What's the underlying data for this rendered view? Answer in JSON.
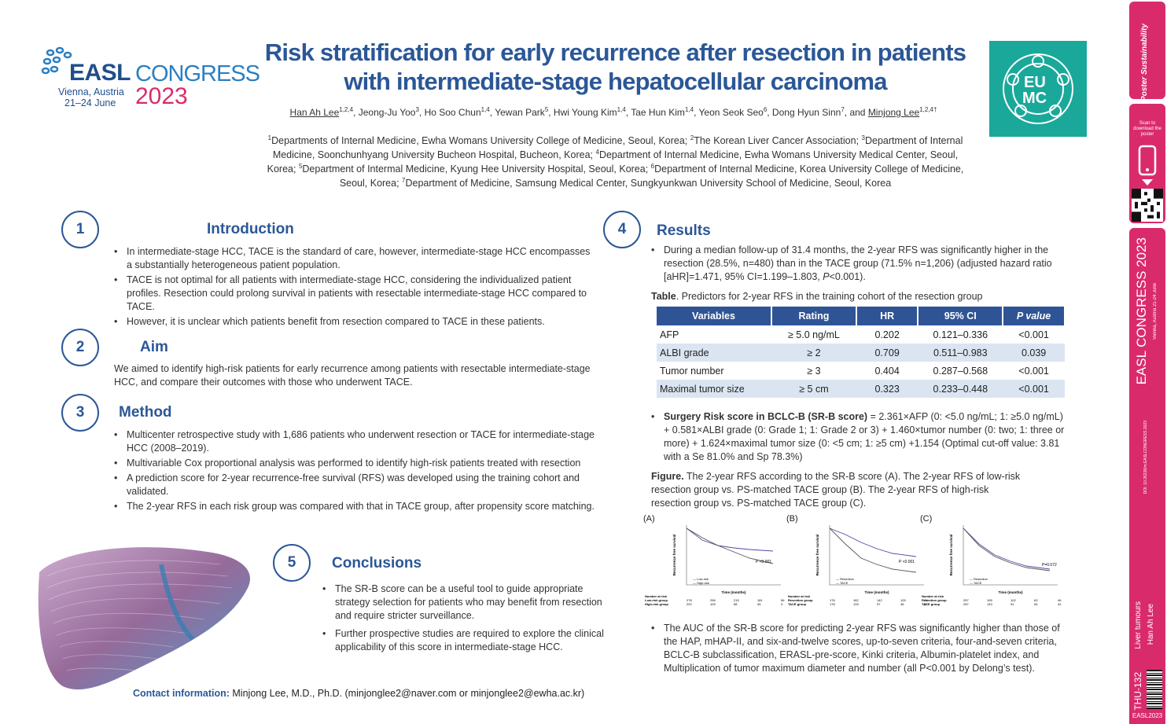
{
  "logo": {
    "easl": "EASL",
    "congress": "CONGRESS",
    "city": "Vienna, Austria",
    "dates": "21–24 June",
    "year": "2023"
  },
  "eumc_logo": {
    "line1": "EU",
    "line2": "MC"
  },
  "title_line1": "Risk stratification for early recurrence after resection in patients",
  "title_line2": "with intermediate-stage hepatocellular carcinoma",
  "authors_html": "<span class=\"u\">Han Ah Lee</span><sup>1,2,4</sup>, Jeong-Ju Yoo<sup>3</sup>, Ho Soo Chun<sup>1,4</sup>, Yewan Park<sup>5</sup>, Hwi Young Kim<sup>1,4</sup>, Tae Hun Kim<sup>1,4</sup>, Yeon Seok Seo<sup>6</sup>, Dong Hyun Sinn<sup>7</sup>, and <span class=\"u\">Minjong Lee</span><sup>1,2,4†</sup>",
  "affiliations_html": "<sup>1</sup>Departments of Internal Medicine, Ewha Womans University College of Medicine, Seoul, Korea; <sup>2</sup>The Korean Liver Cancer Association; <sup>3</sup>Department of Internal Medicine, Soonchunhyang University Bucheon Hospital, Bucheon, Korea; <sup>4</sup>Department of Internal Medicine, Ewha Womans University Medical Center, Seoul, Korea; <sup>5</sup>Department of Intermal Medicine, Kyung Hee University Hospital, Seoul, Korea; <sup>6</sup>Department of Internal Medicine, Korea University College of Medicine, Seoul, Korea; <sup>7</sup>Department of Medicine, Samsung Medical Center, Sungkyunkwan University School of Medicine, Seoul, Korea",
  "sections": {
    "intro": {
      "num": "1",
      "heading": "Introduction",
      "bullets": [
        "In intermediate-stage HCC, TACE is the standard of care, however, intermediate-stage HCC encompasses a substantially heterogeneous patient population.",
        "TACE is not optimal for all patients with intermediate-stage HCC, considering the individualized patient profiles. Resection could prolong survival in patients with resectable intermediate-stage HCC compared to TACE.",
        "However, it is unclear which patients benefit from resection compared to TACE in these patients."
      ]
    },
    "aim": {
      "num": "2",
      "heading": "Aim",
      "text": "We aimed to identify high-risk patients for early recurrence among patients with resectable intermediate-stage HCC, and compare their outcomes with those who underwent TACE."
    },
    "method": {
      "num": "3",
      "heading": "Method",
      "bullets": [
        "Multicenter retrospective study with 1,686 patients who underwent resection or TACE for intermediate-stage HCC (2008–2019).",
        "Multivariable Cox proportional analysis was performed to identify high-risk patients treated with resection",
        "A prediction score for 2-year recurrence-free survival (RFS) was developed using the training cohort and validated.",
        "The 2-year RFS in each risk group was compared with that in TACE group, after propensity score matching."
      ]
    },
    "results": {
      "num": "4",
      "heading": "Results",
      "bullet1_html": "During a median follow-up of 31.4 months, the 2-year RFS was significantly higher in the resection (28.5%, n=480) than in the TACE group (71.5% n=1,206) (adjusted hazard ratio [aHR]=1.471, 95% CI=1.199–1.803, <i>P</i>&lt;0.001).",
      "table_caption_html": "<b>Table</b>. Predictors for 2-year RFS in the training cohort of the resection group",
      "table_headers": [
        "Variables",
        "Rating",
        "HR",
        "95% CI",
        "P value"
      ],
      "table_rows": [
        [
          "AFP",
          "≥ 5.0 ng/mL",
          "0.202",
          "0.121–0.336",
          "<0.001"
        ],
        [
          "ALBI grade",
          "≥ 2",
          "0.709",
          "0.511–0.983",
          "0.039"
        ],
        [
          "Tumor number",
          "≥ 3",
          "0.404",
          "0.287–0.568",
          "<0.001"
        ],
        [
          "Maximal tumor size",
          "≥ 5 cm",
          "0.323",
          "0.233–0.448",
          "<0.001"
        ]
      ],
      "bullet2_html": "<b>Surgery Risk score in BCLC-B (SR-B score)</b> = 2.361×AFP (0: &lt;5.0 ng/mL; 1: ≥5.0 ng/mL) + 0.581×ALBI grade (0: Grade 1; 1: Grade 2 or 3) + 1.460×tumor number (0: two; 1: three or more) + 1.624×maximal tumor size (0: &lt;5 cm; 1: ≥5 cm) +1.154 (Optimal cut-off value: 3.81 with a Se 81.0% and Sp 78.3%)",
      "figure_caption_html": "<b>Figure.</b> The 2-year RFS according to the SR-B score (A). The 2-year RFS of low-risk resection group vs. PS-matched TACE group (B). The 2-year RFS of high-risk resection group vs. PS-matched TACE group (C).",
      "bullet3": "The AUC of the SR-B score for predicting 2-year RFS was significantly higher than those of the HAP, mHAP-II, and six-and-twelve scores, up-to-seven criteria, four-and-seven criteria, BCLC-B subclassification, ERASL-pre-score, Kinki criteria, Albumin-platelet index, and Multiplication of tumor maximum diameter and number (all P<0.001 by Delong’s test)."
    },
    "conclusions": {
      "num": "5",
      "heading": "Conclusions",
      "bullets": [
        "The SR-B score can be a useful tool to guide appropriate strategy selection for patients who may benefit from resection and require stricter surveillance.",
        "Further prospective studies are required to explore the clinical applicability of this score in intermediate-stage HCC."
      ]
    }
  },
  "contact_label": "Contact information:",
  "contact_text": " Minjong Lee, M.D., Ph.D. (minjonglee2@naver.com or minjonglee2@ewha.ac.kr)",
  "km_panels": [
    {
      "label": "(A)",
      "pvalue": "P <0.001",
      "legend": [
        "Low-risk",
        "High-risk"
      ],
      "risk_header": "Number at risk",
      "risk_rows": [
        {
          "name": "Low-risk group",
          "values": [
            "278",
            "256",
            "215",
            "181",
            "56"
          ]
        },
        {
          "name": "High-risk group",
          "values": [
            "202",
            "109",
            "68",
            "45",
            "3"
          ]
        }
      ]
    },
    {
      "label": "(B)",
      "pvalue": "P <0.001",
      "legend": [
        "Resection",
        "TACE"
      ],
      "risk_header": "Number at risk",
      "risk_rows": [
        {
          "name": "Resection group",
          "values": [
            "176",
            "162",
            "142",
            "125",
            "116"
          ]
        },
        {
          "name": "TACE group",
          "values": [
            "176",
            "133",
            "97",
            "46",
            "37"
          ]
        }
      ]
    },
    {
      "label": "(C)",
      "pvalue": "P=0.072",
      "legend": [
        "Resection",
        "TACE"
      ],
      "risk_header": "Number at risk",
      "risk_rows": [
        {
          "name": "Resection group",
          "values": [
            "257",
            "195",
            "102",
            "63",
            "46"
          ]
        },
        {
          "name": "TACE group",
          "values": [
            "257",
            "143",
            "91",
            "54",
            "42"
          ]
        }
      ]
    }
  ],
  "km_axis": {
    "ylabel": "Recurrence free survival",
    "xlabel": "Time (months)"
  },
  "sidebar": {
    "scan_label": "Scan to download the poster",
    "congress_vertical": "EASL CONGRESS 2023",
    "city_vertical": "Vienna, Austria 21-24 June",
    "doi": "DOI: 10.26226/m.EASLCONGRESS.2023",
    "topic": "Liver tumours",
    "author": "Han Ah Lee",
    "code": "THU-132",
    "footer": "EASL2023"
  },
  "colors": {
    "title": "#2b5797",
    "sidebar": "#d92b6c",
    "table_header": "#2f5496",
    "eumc_bg": "#1aa89a"
  }
}
